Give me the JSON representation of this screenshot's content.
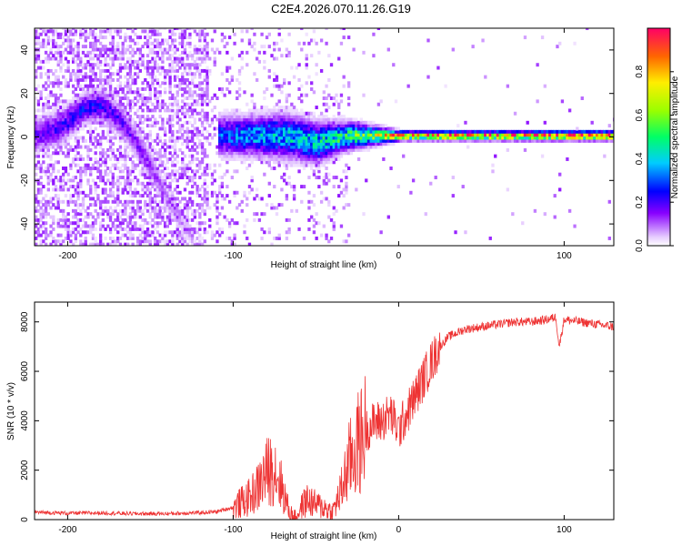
{
  "title": "C2E4.2026.070.11.26.G19",
  "chart_data": [
    {
      "name": "spectrogram",
      "type": "heatmap",
      "xlabel": "Height of straight line (km)",
      "ylabel": "Frequency (Hz)",
      "xlim": [
        -220,
        130
      ],
      "ylim": [
        -50,
        50
      ],
      "xticks": [
        -200,
        -100,
        0,
        100
      ],
      "xtick_labels": [
        "-200",
        "-100",
        "0",
        "100"
      ],
      "yticks": [
        -40,
        -20,
        0,
        20,
        40
      ],
      "ytick_labels": [
        "-40",
        "-20",
        "0",
        "20",
        "40"
      ],
      "colorbar": {
        "label": "Normalized spectral amplitude",
        "range": [
          0,
          1
        ],
        "ticks": [
          0.0,
          0.2,
          0.4,
          0.6,
          0.8
        ],
        "tick_labels": [
          "0.0",
          "0.2",
          "0.4",
          "0.6",
          "0.8"
        ]
      },
      "ridge": [
        {
          "x": -220,
          "freq": 0,
          "amp": 0.18,
          "width": 8
        },
        {
          "x": -205,
          "freq": 4,
          "amp": 0.22,
          "width": 8
        },
        {
          "x": -190,
          "freq": 13,
          "amp": 0.25,
          "width": 7
        },
        {
          "x": -180,
          "freq": 14,
          "amp": 0.24,
          "width": 7
        },
        {
          "x": -170,
          "freq": 8,
          "amp": 0.2,
          "width": 7
        },
        {
          "x": -160,
          "freq": -2,
          "amp": 0.16,
          "width": 7
        },
        {
          "x": -150,
          "freq": -15,
          "amp": 0.14,
          "width": 7
        },
        {
          "x": -140,
          "freq": -30,
          "amp": 0.1,
          "width": 6
        },
        {
          "x": -125,
          "freq": -47,
          "amp": 0.07,
          "width": 5
        },
        {
          "x": -110,
          "freq": 0,
          "amp": 0.3,
          "width": 9
        },
        {
          "x": -90,
          "freq": 0,
          "amp": 0.38,
          "width": 9
        },
        {
          "x": -70,
          "freq": 0,
          "amp": 0.42,
          "width": 10
        },
        {
          "x": -50,
          "freq": -3,
          "amp": 0.45,
          "width": 9
        },
        {
          "x": -30,
          "freq": 0,
          "amp": 0.55,
          "width": 6
        },
        {
          "x": -15,
          "freq": 0,
          "amp": 0.7,
          "width": 4
        },
        {
          "x": 0,
          "freq": 0,
          "amp": 0.92,
          "width": 2
        },
        {
          "x": 130,
          "freq": 0,
          "amp": 1.0,
          "width": 2
        }
      ]
    },
    {
      "name": "snr",
      "type": "line",
      "xlabel": "Height of straight line (km)",
      "ylabel": "SNR (10 * v/v)",
      "xlim": [
        -220,
        130
      ],
      "ylim": [
        0,
        8800
      ],
      "xticks": [
        -200,
        -100,
        0,
        100
      ],
      "xtick_labels": [
        "-200",
        "-100",
        "0",
        "100"
      ],
      "yticks": [
        0,
        2000,
        4000,
        6000,
        8000
      ],
      "ytick_labels": [
        "0",
        "2000",
        "4000",
        "6000",
        "8000"
      ],
      "color": "#ee3333",
      "x": [
        -220,
        -200,
        -180,
        -160,
        -140,
        -120,
        -110,
        -100,
        -90,
        -85,
        -80,
        -75,
        -70,
        -66,
        -62,
        -58,
        -55,
        -50,
        -45,
        -40,
        -35,
        -30,
        -25,
        -22,
        -20,
        -15,
        -10,
        -5,
        0,
        5,
        10,
        15,
        20,
        25,
        30,
        40,
        50,
        60,
        70,
        80,
        90,
        95,
        97,
        100,
        110,
        120,
        130
      ],
      "y": [
        300,
        260,
        270,
        240,
        240,
        280,
        320,
        500,
        900,
        1300,
        1900,
        2100,
        1200,
        300,
        100,
        600,
        800,
        600,
        500,
        300,
        1100,
        2300,
        3000,
        3300,
        3600,
        3900,
        4000,
        4300,
        3600,
        4300,
        5000,
        5700,
        6400,
        7000,
        7400,
        7700,
        7800,
        7900,
        8000,
        8000,
        8100,
        8200,
        7000,
        8100,
        8000,
        7900,
        7800
      ]
    }
  ]
}
